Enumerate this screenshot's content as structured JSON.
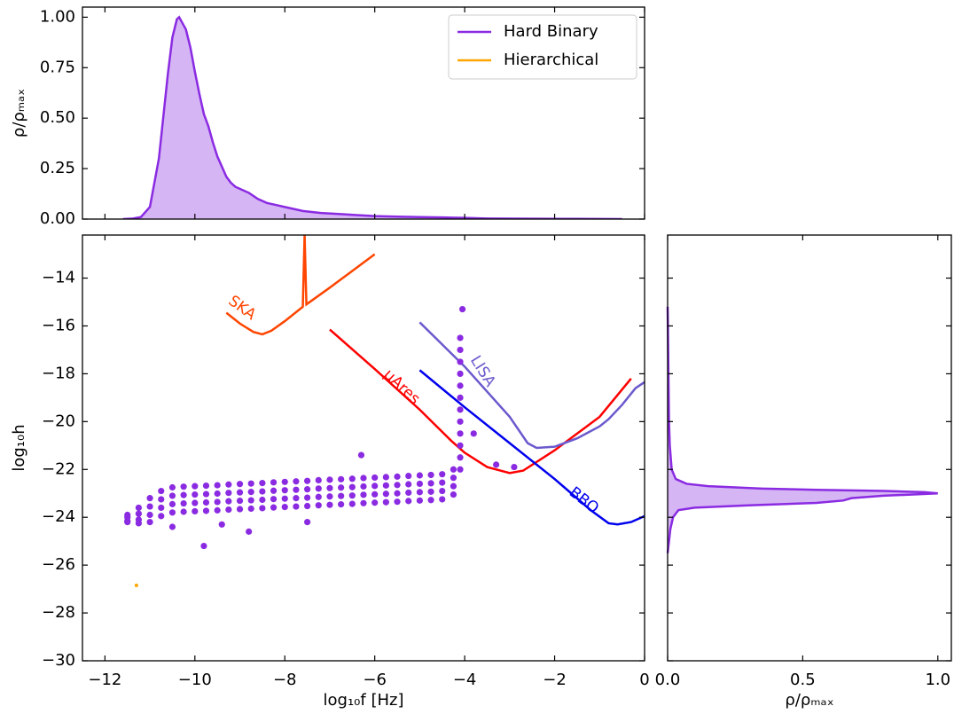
{
  "chart_data": [
    {
      "type": "area",
      "orientation": "vertical",
      "ylabel": "ρ/ρₘₐₓ",
      "color": "#8a2be2",
      "legend": "upper right",
      "x": [
        -11.6,
        -11.4,
        -11.2,
        -11.0,
        -10.8,
        -10.6,
        -10.5,
        -10.4,
        -10.35,
        -10.3,
        -10.2,
        -10.1,
        -10.0,
        -9.9,
        -9.8,
        -9.7,
        -9.6,
        -9.5,
        -9.4,
        -9.3,
        -9.2,
        -9.1,
        -9.0,
        -8.8,
        -8.6,
        -8.4,
        -8.2,
        -8.0,
        -7.6,
        -7.2,
        -6.8,
        -6.4,
        -6,
        -5.5,
        -5,
        -4.5,
        -4,
        -3.5,
        -3,
        -1.5,
        -0.5
      ],
      "values": [
        0,
        0.002,
        0.01,
        0.06,
        0.3,
        0.72,
        0.9,
        0.99,
        1.0,
        0.98,
        0.94,
        0.85,
        0.73,
        0.62,
        0.52,
        0.46,
        0.38,
        0.31,
        0.26,
        0.21,
        0.18,
        0.16,
        0.15,
        0.13,
        0.1,
        0.08,
        0.07,
        0.06,
        0.04,
        0.03,
        0.025,
        0.02,
        0.015,
        0.012,
        0.01,
        0.008,
        0.006,
        0.003,
        0.002,
        0.001,
        0
      ],
      "ylim": [
        0,
        1.05
      ],
      "yticks": [
        {
          "value": 0,
          "label": "0.00"
        },
        {
          "value": 0.25,
          "label": "0.25"
        },
        {
          "value": 0.5,
          "label": "0.50"
        },
        {
          "value": 0.75,
          "label": "0.75"
        },
        {
          "value": 1,
          "label": "1.00"
        }
      ]
    },
    {
      "type": "scatter",
      "xlabel": "log₁₀f [Hz]",
      "ylabel": "log₁₀h",
      "xlim": [
        -12.5,
        0
      ],
      "ylim": [
        -30,
        -12.2
      ],
      "xticks": [
        {
          "value": -12,
          "label": "−12"
        },
        {
          "value": -10,
          "label": "−10"
        },
        {
          "value": -8,
          "label": "−8"
        },
        {
          "value": -6,
          "label": "−6"
        },
        {
          "value": -4,
          "label": "−4"
        },
        {
          "value": -2,
          "label": "−2"
        },
        0
      ],
      "yticks": [
        {
          "value": -30,
          "label": "−30"
        },
        {
          "value": -28,
          "label": "−28"
        },
        {
          "value": -26,
          "label": "−26"
        },
        {
          "value": -24,
          "label": "−24"
        },
        {
          "value": -22,
          "label": "−22"
        },
        {
          "value": -20,
          "label": "−20"
        },
        {
          "value": -18,
          "label": "−18"
        },
        {
          "value": -16,
          "label": "−16"
        },
        {
          "value": -14,
          "label": "−14"
        }
      ],
      "series": [
        {
          "name": "Hard Binary",
          "color": "#8a2be2",
          "x": [
            -11.5,
            -11.25,
            -11,
            -10.75,
            -10.5,
            -10.25,
            -10,
            -9.75,
            -9.5,
            -9.25,
            -9,
            -8.75,
            -8.5,
            -8.25,
            -8,
            -7.75,
            -7.5,
            -7.25,
            -7,
            -6.75,
            -6.5,
            -6.25,
            -6,
            -5.75,
            -5.5,
            -5.25,
            -5,
            -4.75,
            -4.5,
            -4.25,
            -11.5,
            -11.25,
            -11,
            -10.75,
            -10.5,
            -10.25,
            -10,
            -9.75,
            -9.5,
            -9.25,
            -9,
            -8.75,
            -8.5,
            -8.25,
            -8,
            -7.75,
            -7.5,
            -7.25,
            -7,
            -6.75,
            -6.5,
            -6.25,
            -6,
            -5.75,
            -5.5,
            -5.25,
            -5,
            -4.75,
            -4.5,
            -4.25,
            -11.5,
            -11.25,
            -11,
            -10.75,
            -10.5,
            -10.25,
            -10,
            -9.75,
            -9.5,
            -9.25,
            -9,
            -8.75,
            -8.5,
            -8.25,
            -8,
            -7.75,
            -7.5,
            -7.25,
            -7,
            -6.75,
            -6.5,
            -6.25,
            -6,
            -5.75,
            -5.5,
            -5.25,
            -5,
            -4.75,
            -4.5,
            -4.25,
            -11.5,
            -11.25,
            -11,
            -10.75,
            -10.5,
            -10.25,
            -10,
            -9.75,
            -9.5,
            -9.25,
            -9,
            -8.75,
            -8.5,
            -8.25,
            -8,
            -7.75,
            -7.5,
            -7.25,
            -7,
            -6.75,
            -6.5,
            -6.25,
            -6,
            -5.75,
            -5.5,
            -5.25,
            -5,
            -4.75,
            -4.5,
            -4.25,
            -4.1,
            -4.1,
            -4.1,
            -4.1,
            -4.1,
            -4.1,
            -4.1,
            -4.1,
            -4.1,
            -4.1,
            -4.1,
            -4.1,
            -6.3,
            -3.3,
            -2.9,
            -4.05,
            -9.8,
            -8.8,
            -9.4,
            -10.5,
            -7.5,
            -3.8
          ],
          "values": [
            -23.9,
            -23.6,
            -23.2,
            -22.9,
            -22.75,
            -22.72,
            -22.7,
            -22.68,
            -22.66,
            -22.63,
            -22.61,
            -22.59,
            -22.57,
            -22.54,
            -22.52,
            -22.5,
            -22.48,
            -22.45,
            -22.43,
            -22.41,
            -22.39,
            -22.36,
            -22.34,
            -22.32,
            -22.3,
            -22.27,
            -22.25,
            -22.23,
            -22.2,
            -22.0,
            -24.0,
            -23.85,
            -23.55,
            -23.25,
            -23.1,
            -23.07,
            -23.05,
            -23.03,
            -23.01,
            -22.98,
            -22.96,
            -22.94,
            -22.92,
            -22.89,
            -22.87,
            -22.85,
            -22.83,
            -22.8,
            -22.78,
            -22.76,
            -22.74,
            -22.71,
            -22.69,
            -22.67,
            -22.65,
            -22.62,
            -22.6,
            -22.58,
            -22.55,
            -22.35,
            -24.15,
            -24.1,
            -23.9,
            -23.6,
            -23.45,
            -23.42,
            -23.4,
            -23.38,
            -23.36,
            -23.33,
            -23.31,
            -23.29,
            -23.27,
            -23.24,
            -23.22,
            -23.2,
            -23.18,
            -23.15,
            -23.13,
            -23.11,
            -23.09,
            -23.06,
            -23.04,
            -23.02,
            -23.0,
            -22.97,
            -22.95,
            -22.93,
            -22.9,
            -22.7,
            -24.2,
            -24.25,
            -24.2,
            -23.95,
            -23.8,
            -23.77,
            -23.75,
            -23.73,
            -23.71,
            -23.68,
            -23.66,
            -23.64,
            -23.62,
            -23.59,
            -23.57,
            -23.55,
            -23.53,
            -23.5,
            -23.48,
            -23.46,
            -23.44,
            -23.41,
            -23.39,
            -23.37,
            -23.35,
            -23.32,
            -23.3,
            -23.28,
            -23.25,
            -23.05,
            -22,
            -21.5,
            -21,
            -20.5,
            -20,
            -19.5,
            -19,
            -18.5,
            -18,
            -17.5,
            -17,
            -16.5,
            -21.4,
            -21.8,
            -21.9,
            -15.3,
            -25.2,
            -24.6,
            -24.3,
            -24.4,
            -24.2,
            -20.5
          ]
        },
        {
          "name": "Hierarchical",
          "color": "#ffa500",
          "x": [
            -11.3
          ],
          "values": [
            -26.85
          ]
        }
      ],
      "curves": [
        {
          "name": "SKA",
          "color": "#ff4500",
          "x": [
            -9.3,
            -9,
            -8.7,
            -8.5,
            -8.3,
            -8,
            -7.6,
            -7.56,
            -7.52,
            -7,
            -6.5,
            -6
          ],
          "values": [
            -15.45,
            -15.9,
            -16.25,
            -16.35,
            -16.2,
            -15.8,
            -15.2,
            -12.2,
            -15.1,
            -14.4,
            -13.7,
            -13
          ]
        },
        {
          "name": "μAres",
          "color": "#ff0000",
          "x": [
            -7,
            -6,
            -5,
            -4.3,
            -4,
            -3.5,
            -3,
            -2.7,
            -2,
            -1,
            -0.3
          ],
          "values": [
            -16.15,
            -17.8,
            -19.5,
            -20.8,
            -21.3,
            -21.9,
            -22.15,
            -22.05,
            -21.2,
            -19.8,
            -18.2
          ]
        },
        {
          "name": "LISA",
          "color": "#6a5acd",
          "x": [
            -5,
            -4,
            -3,
            -2.6,
            -2.4,
            -2,
            -1.5,
            -1,
            -0.8,
            -0.5,
            -0.2,
            0
          ],
          "values": [
            -15.85,
            -17.7,
            -19.8,
            -20.9,
            -21.1,
            -21.05,
            -20.7,
            -20.2,
            -19.9,
            -19.3,
            -18.6,
            -18.35
          ]
        },
        {
          "name": "BBO",
          "color": "#0000ee",
          "x": [
            -5,
            -4,
            -3,
            -2,
            -1.2,
            -0.8,
            -0.6,
            -0.3,
            0
          ],
          "values": [
            -17.85,
            -19.4,
            -20.9,
            -22.4,
            -23.7,
            -24.25,
            -24.3,
            -24.2,
            -23.95
          ]
        }
      ]
    },
    {
      "type": "area",
      "orientation": "horizontal",
      "xlabel": "ρ/ρₘₐₓ",
      "color": "#8a2be2",
      "y": [
        -25.5,
        -25,
        -24.5,
        -24,
        -23.7,
        -23.6,
        -23.5,
        -23.4,
        -23.3,
        -23.2,
        -23.1,
        -23.05,
        -23.0,
        -22.95,
        -22.9,
        -22.85,
        -22.8,
        -22.7,
        -22.6,
        -22.4,
        -22.0,
        -21,
        -20,
        -18,
        -16,
        -15.2
      ],
      "values": [
        0,
        0.005,
        0.01,
        0.02,
        0.04,
        0.1,
        0.3,
        0.55,
        0.65,
        0.68,
        0.8,
        0.9,
        1.0,
        0.95,
        0.8,
        0.55,
        0.35,
        0.15,
        0.07,
        0.03,
        0.015,
        0.008,
        0.005,
        0.003,
        0.001,
        0
      ],
      "xlim": [
        0,
        1.05
      ],
      "xticks": [
        {
          "value": 0,
          "label": "0.0"
        },
        {
          "value": 0.5,
          "label": "0.5"
        },
        {
          "value": 1,
          "label": "1.0"
        }
      ]
    }
  ]
}
